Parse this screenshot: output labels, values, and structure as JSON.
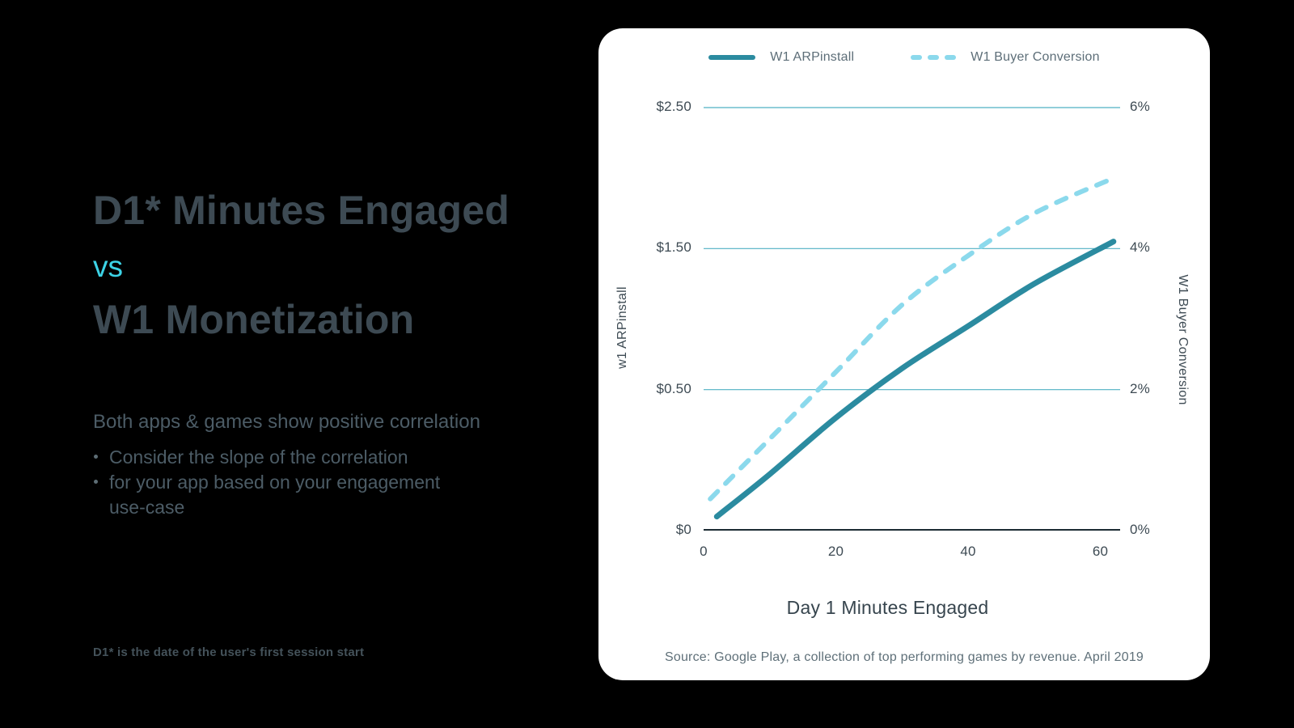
{
  "page": {
    "background": "#000000"
  },
  "left_panel": {
    "title_line1": "D1* Minutes Engaged",
    "title_vs": "vs",
    "title_line2": "W1 Monetization",
    "lead": "Both apps & games show positive correlation",
    "bullets": [
      "Consider the slope of the correlation",
      "for your app based on your engagement use-case"
    ],
    "footnote": "D1* is the date of the user's first session start",
    "colors": {
      "title": "#3d4a53",
      "vs": "#3cd3e6",
      "body": "#4c5c66"
    }
  },
  "chart_data": {
    "type": "line",
    "title": "",
    "xlabel": "Day 1 Minutes Engaged",
    "x_ticks": [
      0,
      20,
      40,
      60
    ],
    "x_range": [
      0,
      63
    ],
    "tick_units": [
      6,
      4,
      2,
      0
    ],
    "grid_units": [
      2,
      4,
      6
    ],
    "left_axis": {
      "label": "w1 ARPinstall",
      "tick_labels": [
        "$2.50",
        "$1.50",
        "$0.50",
        "$0"
      ]
    },
    "right_axis": {
      "label": "W1 Buyer Conversion",
      "tick_labels": [
        "6%",
        "4%",
        "2%",
        "0%"
      ]
    },
    "series": [
      {
        "name": "W1 ARPinstall",
        "axis": "left",
        "unit": "USD",
        "style": "solid",
        "color": "#2b8ba0",
        "x": [
          2,
          10,
          20,
          30,
          40,
          50,
          62
        ],
        "values": [
          0.05,
          0.2,
          0.4,
          0.65,
          0.95,
          1.25,
          1.55
        ]
      },
      {
        "name": "W1 Buyer Conversion",
        "axis": "right",
        "unit": "percent",
        "style": "dashed",
        "color": "#8bd9ec",
        "x": [
          1,
          10,
          20,
          30,
          40,
          50,
          62
        ],
        "values": [
          0.45,
          1.3,
          2.25,
          3.2,
          3.9,
          4.5,
          5.0
        ]
      }
    ],
    "legend_position": "top",
    "grid": "horizontal",
    "source": "Source: Google Play, a collection of top performing games by revenue. April 2019",
    "colors": {
      "gridline": "#4fb0c3",
      "axis": "#1c2b33"
    }
  }
}
